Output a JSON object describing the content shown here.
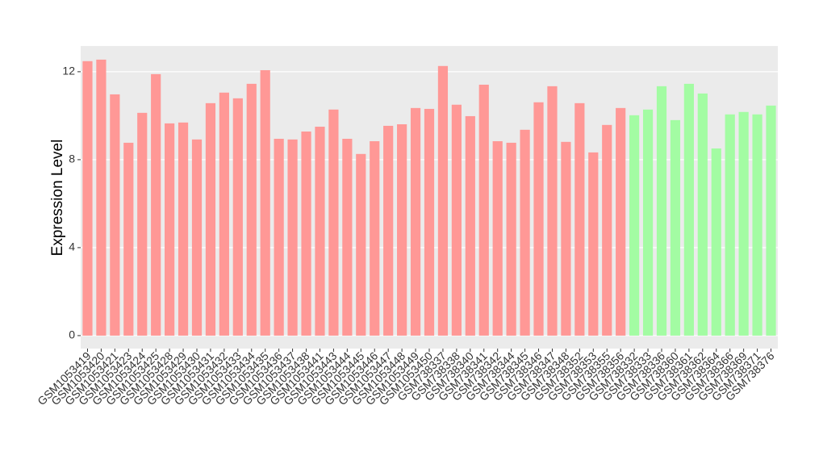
{
  "chart_data": {
    "type": "bar",
    "y_label": "Expression Level",
    "categories": [
      "GSM1053419",
      "GSM1053420",
      "GSM1053421",
      "GSM1053423",
      "GSM1053424",
      "GSM1053425",
      "GSM1053428",
      "GSM1053429",
      "GSM1053430",
      "GSM1053431",
      "GSM1053432",
      "GSM1053433",
      "GSM1053434",
      "GSM1053435",
      "GSM1053436",
      "GSM1053437",
      "GSM1053438",
      "GSM1053441",
      "GSM1053443",
      "GSM1053444",
      "GSM1053445",
      "GSM1053446",
      "GSM1053447",
      "GSM1053448",
      "GSM1053449",
      "GSM1053450",
      "GSM738337",
      "GSM738338",
      "GSM738340",
      "GSM738341",
      "GSM738342",
      "GSM738344",
      "GSM738345",
      "GSM738346",
      "GSM738347",
      "GSM738348",
      "GSM738352",
      "GSM738353",
      "GSM738355",
      "GSM738356",
      "GSM738332",
      "GSM738333",
      "GSM738336",
      "GSM738360",
      "GSM738361",
      "GSM738362",
      "GSM738364",
      "GSM738366",
      "GSM738369",
      "GSM738371",
      "GSM738376"
    ],
    "values": [
      12.48,
      12.55,
      10.97,
      8.77,
      10.13,
      11.89,
      9.65,
      9.69,
      8.92,
      10.57,
      11.05,
      10.79,
      11.45,
      12.07,
      8.95,
      8.92,
      9.28,
      9.5,
      10.28,
      8.95,
      8.26,
      8.84,
      9.54,
      9.61,
      10.35,
      10.31,
      12.26,
      10.5,
      9.98,
      11.41,
      8.84,
      8.77,
      9.36,
      10.61,
      11.34,
      8.81,
      10.57,
      8.33,
      9.58,
      10.35,
      10.02,
      10.28,
      11.34,
      9.8,
      11.45,
      11.01,
      8.51,
      10.06,
      10.17,
      10.06,
      10.46
    ],
    "colors": [
      "#ff9896",
      "#ff9896",
      "#ff9896",
      "#ff9896",
      "#ff9896",
      "#ff9896",
      "#ff9896",
      "#ff9896",
      "#ff9896",
      "#ff9896",
      "#ff9896",
      "#ff9896",
      "#ff9896",
      "#ff9896",
      "#ff9896",
      "#ff9896",
      "#ff9896",
      "#ff9896",
      "#ff9896",
      "#ff9896",
      "#ff9896",
      "#ff9896",
      "#ff9896",
      "#ff9896",
      "#ff9896",
      "#ff9896",
      "#ff9896",
      "#ff9896",
      "#ff9896",
      "#ff9896",
      "#ff9896",
      "#ff9896",
      "#ff9896",
      "#ff9896",
      "#ff9896",
      "#ff9896",
      "#ff9896",
      "#ff9896",
      "#ff9896",
      "#ff9896",
      "#a3fca3",
      "#a3fca3",
      "#a3fca3",
      "#a3fca3",
      "#a3fca3",
      "#a3fca3",
      "#a3fca3",
      "#a3fca3",
      "#a3fca3",
      "#a3fca3",
      "#a3fca3"
    ],
    "ylim": [
      -0.59,
      13.17
    ],
    "yticks": [
      0,
      4,
      8,
      12
    ],
    "grid": true
  }
}
